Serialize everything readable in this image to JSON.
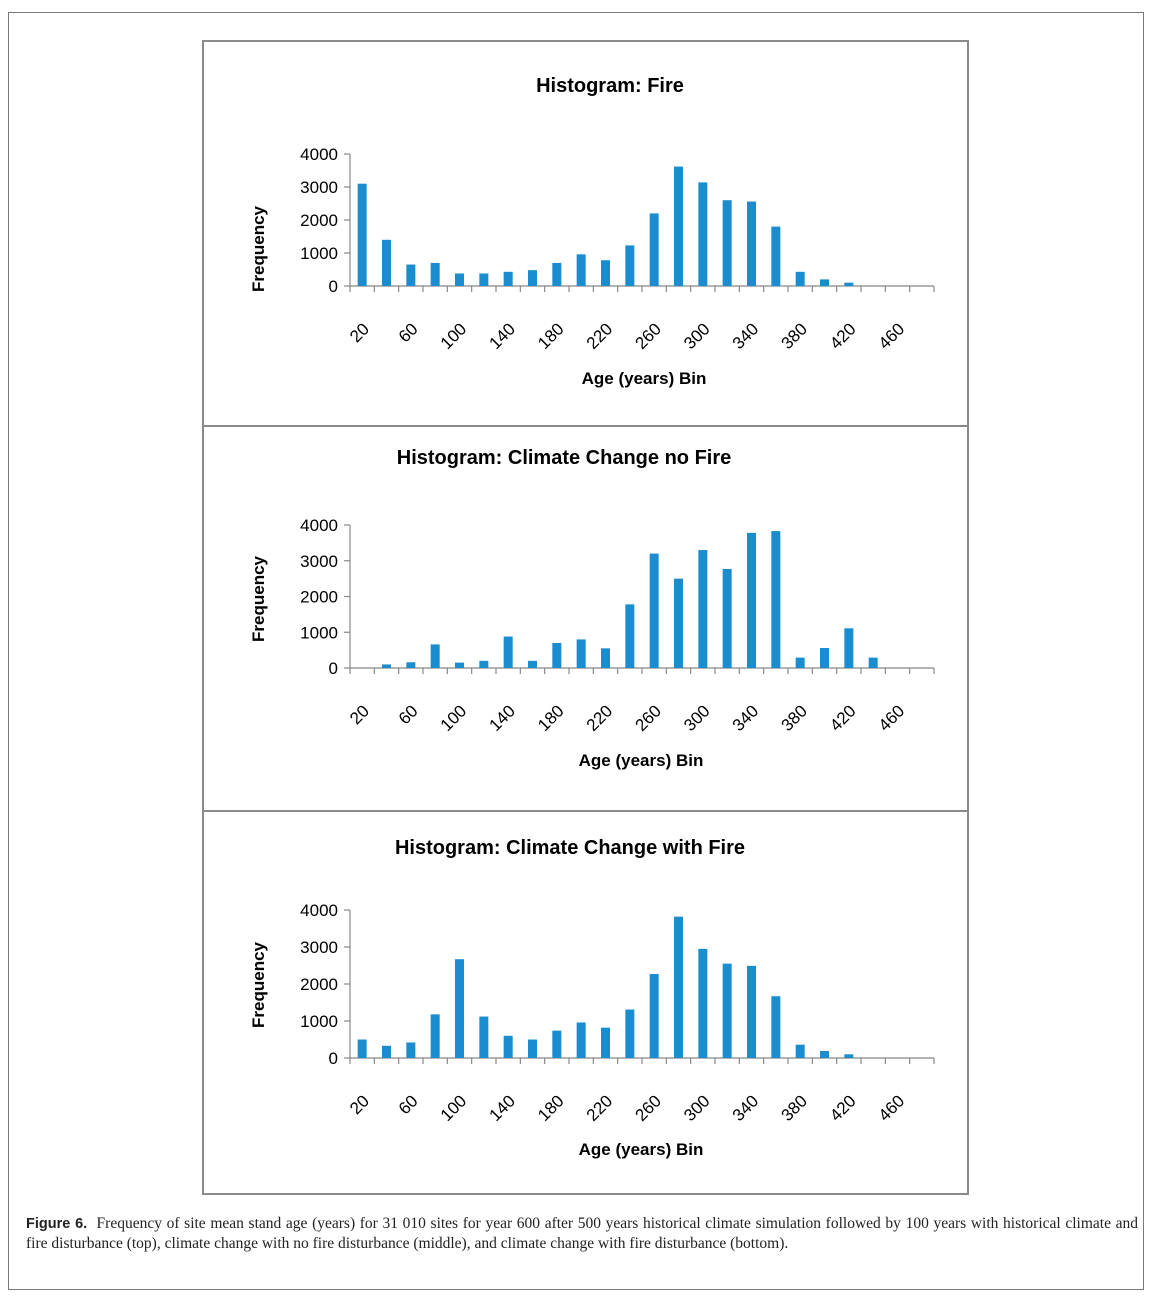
{
  "chart_data": [
    {
      "type": "bar",
      "title": "Histogram: Fire",
      "xlabel": "Age (years) Bin",
      "ylabel": "Frequency",
      "ylim": [
        0,
        4000
      ],
      "yticks": [
        "0",
        "1000",
        "2000",
        "3000",
        "4000"
      ],
      "xtick_labels": [
        "20",
        "60",
        "100",
        "140",
        "180",
        "220",
        "260",
        "300",
        "340",
        "380",
        "420",
        "460"
      ],
      "categories": [
        "20",
        "40",
        "60",
        "80",
        "100",
        "120",
        "140",
        "160",
        "180",
        "200",
        "220",
        "240",
        "260",
        "280",
        "300",
        "320",
        "340",
        "360",
        "380",
        "400",
        "420",
        "440",
        "460",
        "480"
      ],
      "values": [
        3100,
        1400,
        650,
        700,
        380,
        380,
        430,
        480,
        700,
        960,
        780,
        1230,
        2200,
        3620,
        3140,
        2600,
        2560,
        1800,
        430,
        200,
        100,
        0,
        0,
        0
      ],
      "color": "#1a8dd0",
      "grid": false
    },
    {
      "type": "bar",
      "title": "Histogram: Climate Change no Fire",
      "xlabel": "Age (years) Bin",
      "ylabel": "Frequency",
      "ylim": [
        0,
        4000
      ],
      "yticks": [
        "0",
        "1000",
        "2000",
        "3000",
        "4000"
      ],
      "xtick_labels": [
        "20",
        "60",
        "100",
        "140",
        "180",
        "220",
        "260",
        "300",
        "340",
        "380",
        "420",
        "460"
      ],
      "categories": [
        "20",
        "40",
        "60",
        "80",
        "100",
        "120",
        "140",
        "160",
        "180",
        "200",
        "220",
        "240",
        "260",
        "280",
        "300",
        "320",
        "340",
        "360",
        "380",
        "400",
        "420",
        "440",
        "460",
        "480"
      ],
      "values": [
        0,
        100,
        160,
        660,
        150,
        200,
        880,
        200,
        700,
        800,
        550,
        1780,
        3200,
        2500,
        3300,
        2770,
        3780,
        3830,
        290,
        560,
        1110,
        290,
        0,
        0
      ],
      "color": "#1a8dd0",
      "grid": false
    },
    {
      "type": "bar",
      "title": "Histogram: Climate Change with Fire",
      "xlabel": "Age (years) Bin",
      "ylabel": "Frequency",
      "ylim": [
        0,
        4000
      ],
      "yticks": [
        "0",
        "1000",
        "2000",
        "3000",
        "4000"
      ],
      "xtick_labels": [
        "20",
        "60",
        "100",
        "140",
        "180",
        "220",
        "260",
        "300",
        "340",
        "380",
        "420",
        "460"
      ],
      "categories": [
        "20",
        "40",
        "60",
        "80",
        "100",
        "120",
        "140",
        "160",
        "180",
        "200",
        "220",
        "240",
        "260",
        "280",
        "300",
        "320",
        "340",
        "360",
        "380",
        "400",
        "420",
        "440",
        "460",
        "480"
      ],
      "values": [
        500,
        330,
        420,
        1180,
        2670,
        1120,
        600,
        500,
        740,
        960,
        820,
        1310,
        2270,
        3820,
        2950,
        2550,
        2490,
        1670,
        360,
        190,
        100,
        0,
        0,
        0
      ],
      "color": "#1a8dd0",
      "grid": false
    }
  ],
  "caption": {
    "label": "Figure 6.",
    "text": "Frequency of site mean stand age (years) for 31 010 sites for year 600 after 500 years historical climate simulation followed by 100 years with historical climate and fire disturbance (top), climate change with no fire disturbance (middle), and climate change with fire disturbance (bottom)."
  }
}
